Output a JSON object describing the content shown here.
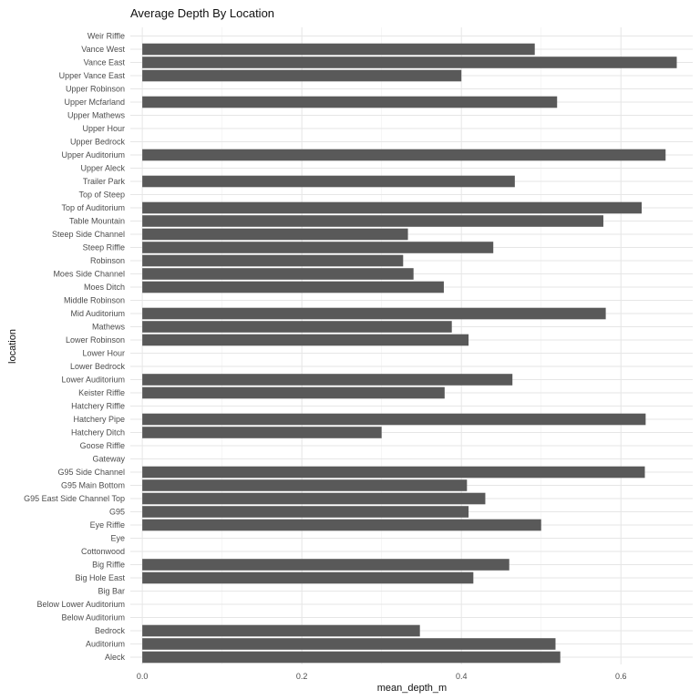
{
  "chart_data": {
    "type": "bar",
    "orientation": "horizontal",
    "title": "Average Depth By Location",
    "xlabel": "mean_depth_m",
    "ylabel": "location",
    "xlim": [
      -0.015,
      0.69
    ],
    "xticks": [
      0.0,
      0.2,
      0.4,
      0.6
    ],
    "xtick_labels": [
      "0.0",
      "0.2",
      "0.4",
      "0.6"
    ],
    "grid": true,
    "bar_color": "#595959",
    "categories": [
      "Aleck",
      "Auditorium",
      "Bedrock",
      "Below Auditorium",
      "Below Lower Auditorium",
      "Big Bar",
      "Big Hole East",
      "Big Riffle",
      "Cottonwood",
      "Eye",
      "Eye Riffle",
      "G95",
      "G95 East Side Channel Top",
      "G95 Main Bottom",
      "G95 Side Channel",
      "Gateway",
      "Goose Riffle",
      "Hatchery Ditch",
      "Hatchery Pipe",
      "Hatchery Riffle",
      "Keister Riffle",
      "Lower Auditorium",
      "Lower Bedrock",
      "Lower Hour",
      "Lower Robinson",
      "Mathews",
      "Mid Auditorium",
      "Middle Robinson",
      "Moes Ditch",
      "Moes Side Channel",
      "Robinson",
      "Steep Riffle",
      "Steep Side Channel",
      "Table Mountain",
      "Top of Auditorium",
      "Top of Steep",
      "Trailer Park",
      "Upper Aleck",
      "Upper Auditorium",
      "Upper Bedrock",
      "Upper Hour",
      "Upper Mathews",
      "Upper Mcfarland",
      "Upper Robinson",
      "Upper Vance East",
      "Vance East",
      "Vance West",
      "Weir Riffle"
    ],
    "values": [
      0.524,
      0.518,
      0.348,
      null,
      null,
      null,
      0.415,
      0.46,
      null,
      null,
      0.5,
      0.409,
      0.43,
      0.407,
      0.63,
      null,
      null,
      0.3,
      0.631,
      null,
      0.379,
      0.464,
      null,
      null,
      0.409,
      0.388,
      0.581,
      null,
      0.378,
      0.34,
      0.327,
      0.44,
      0.333,
      0.578,
      0.626,
      null,
      0.467,
      null,
      0.656,
      null,
      null,
      null,
      0.52,
      null,
      0.4,
      0.67,
      0.492,
      null
    ]
  }
}
